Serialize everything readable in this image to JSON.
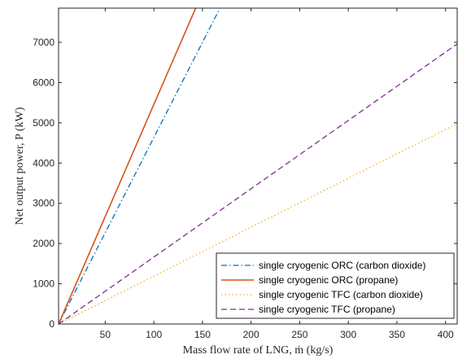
{
  "chart_data": {
    "type": "line",
    "xlabel": "Mass flow rate of LNG, ṁ (kg/s)",
    "ylabel": "Net output power, P (kW)",
    "xlim": [
      2,
      412
    ],
    "ylim": [
      0,
      7850
    ],
    "xticks": [
      50,
      100,
      150,
      200,
      250,
      300,
      350,
      400
    ],
    "yticks": [
      0,
      1000,
      2000,
      3000,
      4000,
      5000,
      6000,
      7000
    ],
    "grid": false,
    "legend_position": "bottom-right",
    "series": [
      {
        "name": "single cryogenic ORC (carbon dioxide)",
        "color": "#0072BD",
        "dash": "dash-dot",
        "x": [
          2,
          168
        ],
        "y": [
          0,
          7850
        ]
      },
      {
        "name": "single cryogenic ORC (propane)",
        "color": "#D95319",
        "dash": "solid",
        "x": [
          2,
          143
        ],
        "y": [
          0,
          7850
        ]
      },
      {
        "name": "single cryogenic TFC (carbon dioxide)",
        "color": "#EDB120",
        "dash": "dotted",
        "x": [
          2,
          412
        ],
        "y": [
          0,
          4980
        ]
      },
      {
        "name": "single cryogenic TFC (propane)",
        "color": "#7E2F8E",
        "dash": "dashed",
        "x": [
          2,
          412
        ],
        "y": [
          0,
          6960
        ]
      }
    ]
  }
}
